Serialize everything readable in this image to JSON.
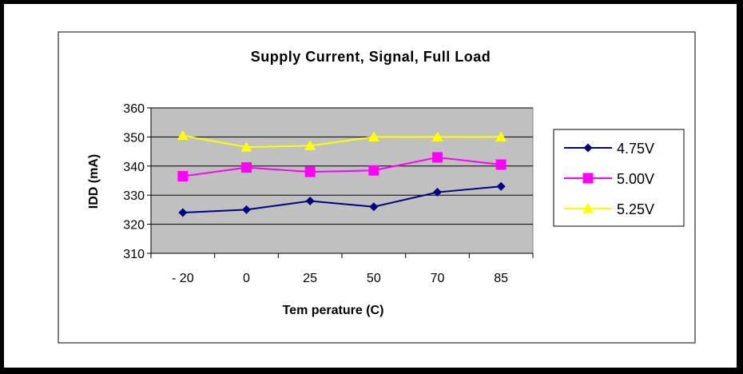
{
  "chart_data": {
    "type": "line",
    "title": "Supply Current, Signal, Full Load",
    "xlabel": "Tem perature (C)",
    "ylabel": "IDD (mA)",
    "categories": [
      "- 20",
      "0",
      "25",
      "50",
      "70",
      "85"
    ],
    "ylim": [
      310,
      360
    ],
    "yticks": [
      310,
      320,
      330,
      340,
      350,
      360
    ],
    "grid": true,
    "plot_background": "#c0c0c0",
    "legend_position": "right",
    "series": [
      {
        "name": "4.75V",
        "marker": "diamond",
        "color": "#000080",
        "values": [
          324,
          325,
          328,
          326,
          331,
          333
        ]
      },
      {
        "name": "5.00V",
        "marker": "square",
        "color": "#ff00ff",
        "values": [
          336.5,
          339.5,
          338,
          338.5,
          343,
          340.5
        ]
      },
      {
        "name": "5.25V",
        "marker": "triangle",
        "color": "#ffff00",
        "values": [
          350.5,
          346.5,
          347,
          350,
          350,
          350
        ]
      }
    ]
  }
}
